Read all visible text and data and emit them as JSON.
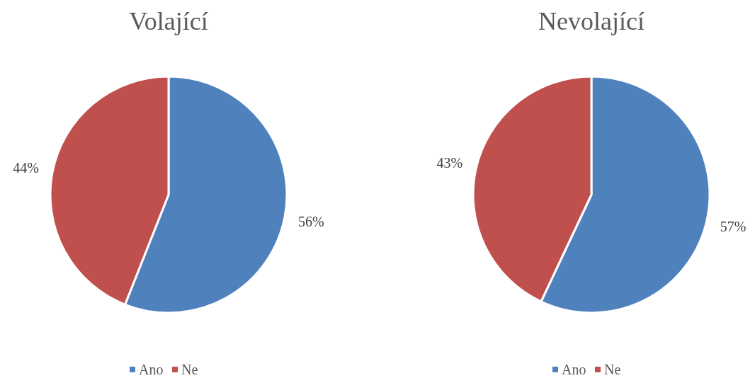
{
  "chart_data": [
    {
      "type": "pie",
      "title": "Volající",
      "categories": [
        "Ano",
        "Ne"
      ],
      "values": [
        56,
        44
      ],
      "colors": [
        "#4f81bd",
        "#c0504d"
      ],
      "value_labels": [
        "56%",
        "44%"
      ],
      "legend": "bottom"
    },
    {
      "type": "pie",
      "title": "Nevolající",
      "categories": [
        "Ano",
        "Ne"
      ],
      "values": [
        57,
        43
      ],
      "colors": [
        "#4f81bd",
        "#c0504d"
      ],
      "value_labels": [
        "57%",
        "43%"
      ],
      "legend": "bottom"
    }
  ]
}
